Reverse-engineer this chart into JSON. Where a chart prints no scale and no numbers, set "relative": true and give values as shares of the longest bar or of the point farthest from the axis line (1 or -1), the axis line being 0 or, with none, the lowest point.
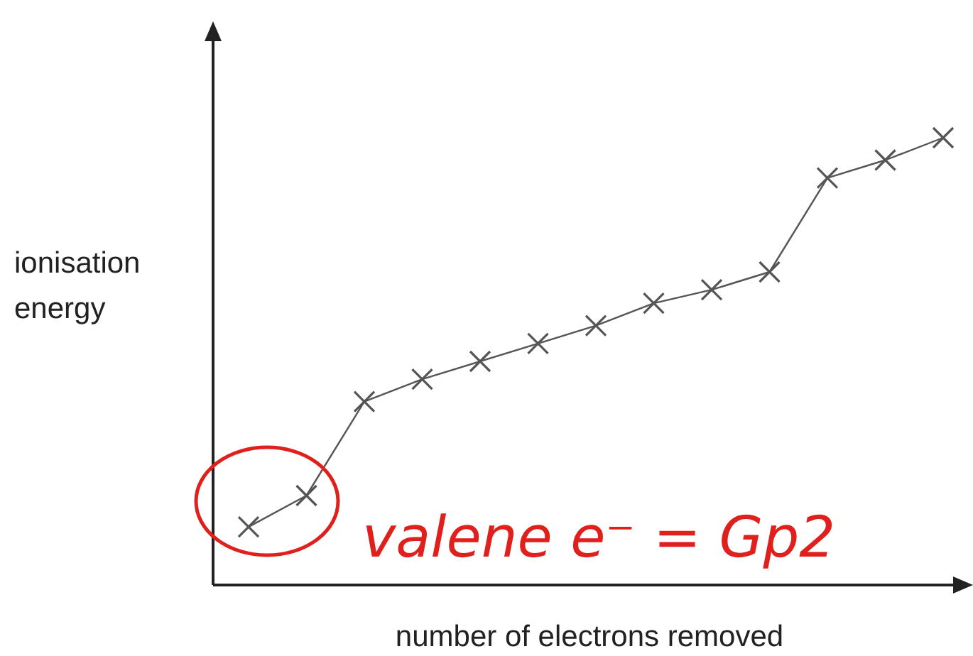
{
  "chart_data": {
    "type": "line",
    "relative": true,
    "marker": "cross",
    "color": "#555555",
    "xlabel": "number of electrons removed",
    "ylabel": "ionisation energy",
    "categories": [
      null,
      null,
      null,
      null,
      null,
      null,
      null,
      null,
      null,
      null,
      null,
      null,
      null
    ],
    "values": [
      0.13,
      0.2,
      0.41,
      0.46,
      0.5,
      0.54,
      0.58,
      0.63,
      0.66,
      0.7,
      0.91,
      0.95,
      1
    ],
    "annotations": [
      "valene e⁻ = Gp2"
    ]
  }
}
